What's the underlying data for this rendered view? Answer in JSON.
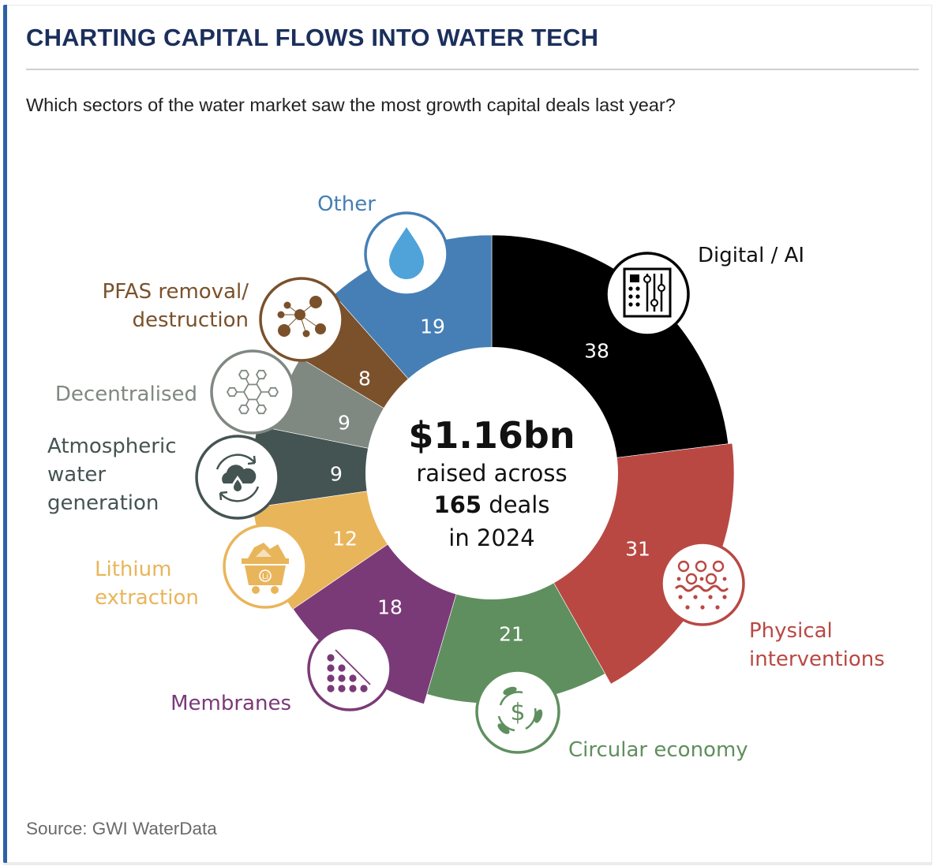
{
  "header": {
    "title": "CHARTING CAPITAL FLOWS INTO WATER TECH",
    "subtitle": "Which sectors of the water market saw the most growth capital deals last year?"
  },
  "footer": {
    "source": "Source: GWI WaterData"
  },
  "center": {
    "amount": "$1.16bn",
    "line1": "raised across",
    "deals_number": "165",
    "deals_word": " deals",
    "line3": "in 2024"
  },
  "chart_data": {
    "type": "pie",
    "variant": "donut",
    "title": "CHARTING CAPITAL FLOWS INTO WATER TECH",
    "subtitle": "Which sectors of the water market saw the most growth capital deals last year?",
    "value_unit": "number of growth capital deals",
    "total_deals": 165,
    "total_raised": "$1.16bn",
    "year": 2024,
    "direction": "clockwise from top",
    "categories": [
      "Digital / AI",
      "Physical interventions",
      "Circular economy",
      "Membranes",
      "Lithium extraction",
      "Atmospheric water generation",
      "Decentralised",
      "PFAS removal/ destruction",
      "Other"
    ],
    "values": [
      38,
      31,
      21,
      18,
      12,
      9,
      9,
      8,
      19
    ],
    "segments": [
      {
        "name": "Digital / AI",
        "label_lines": [
          "Digital / AI"
        ],
        "value": 38,
        "color": "#000000",
        "label_color": "#111111",
        "icon": "sliders-panel-icon"
      },
      {
        "name": "Physical interventions",
        "label_lines": [
          "Physical",
          "interventions"
        ],
        "value": 31,
        "color": "#b94843",
        "label_color": "#b94843",
        "icon": "particles-filter-icon"
      },
      {
        "name": "Circular economy",
        "label_lines": [
          "Circular economy"
        ],
        "value": 21,
        "color": "#5f8f5e",
        "label_color": "#5f8f5e",
        "icon": "dollar-cycle-icon"
      },
      {
        "name": "Membranes",
        "label_lines": [
          "Membranes"
        ],
        "value": 18,
        "color": "#7a3a78",
        "label_color": "#7a3a78",
        "icon": "membrane-dots-icon"
      },
      {
        "name": "Lithium extraction",
        "label_lines": [
          "Lithium",
          "extraction"
        ],
        "value": 12,
        "color": "#e9b55a",
        "label_color": "#e9b55a",
        "icon": "mine-cart-icon"
      },
      {
        "name": "Atmospheric water generation",
        "label_lines": [
          "Atmospheric",
          "water",
          "generation"
        ],
        "value": 9,
        "color": "#445452",
        "label_color": "#445452",
        "icon": "cloud-cycle-icon"
      },
      {
        "name": "Decentralised",
        "label_lines": [
          "Decentralised"
        ],
        "value": 9,
        "color": "#7f8881",
        "label_color": "#7f8881",
        "icon": "hexagon-network-icon"
      },
      {
        "name": "PFAS removal/ destruction",
        "label_lines": [
          "PFAS removal/",
          "destruction"
        ],
        "value": 8,
        "color": "#7a512b",
        "label_color": "#7a512b",
        "icon": "molecule-icon"
      },
      {
        "name": "Other",
        "label_lines": [
          "Other"
        ],
        "value": 19,
        "color": "#467fb5",
        "label_color": "#467fb5",
        "icon": "water-drop-icon"
      }
    ]
  }
}
